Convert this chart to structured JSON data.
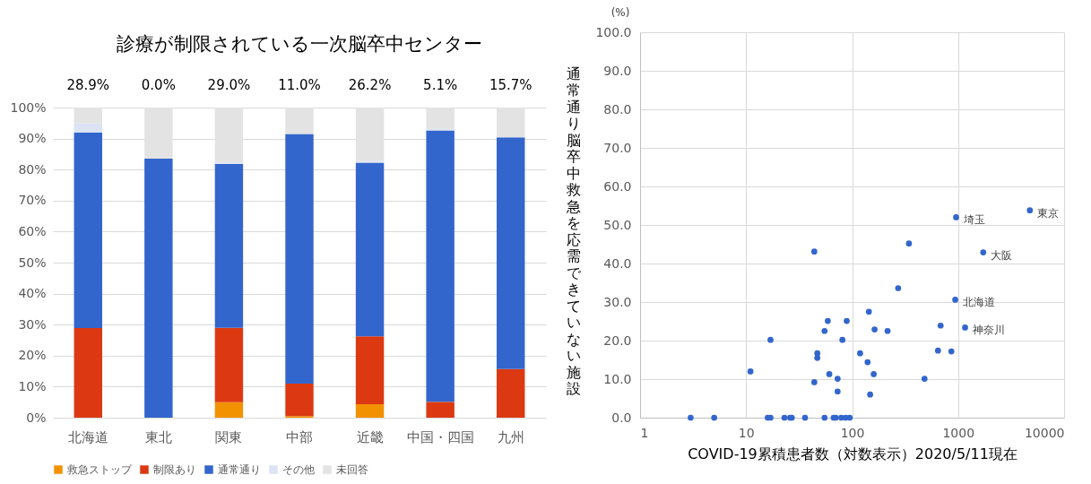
{
  "chart_data": [
    {
      "type": "bar",
      "title": "診療が制限されている一次脳卒中センター",
      "stacked": true,
      "legend": "bottom",
      "grid": "y",
      "categories": [
        "北海道",
        "東北",
        "関東",
        "中部",
        "近畿",
        "中国・四国",
        "九州"
      ],
      "series": [
        {
          "name": "救急ストップ",
          "color": "#f39200",
          "values": [
            0,
            0,
            5.0,
            0.5,
            4.3,
            0,
            0
          ]
        },
        {
          "name": "制限あり",
          "color": "#dc3912",
          "values": [
            28.9,
            0,
            24.0,
            10.5,
            21.9,
            5.1,
            15.7
          ]
        },
        {
          "name": "通常通り",
          "color": "#3366cc",
          "values": [
            63.1,
            83.5,
            52.8,
            80.5,
            56.0,
            87.5,
            74.7
          ]
        },
        {
          "name": "その他",
          "color": "#dbe3f5",
          "values": [
            2.9,
            0,
            0.5,
            0,
            0.6,
            0.5,
            0
          ]
        },
        {
          "name": "未回答",
          "color": "#e3e3e3",
          "values": [
            5.1,
            16.5,
            17.7,
            8.5,
            17.2,
            6.9,
            9.6
          ]
        }
      ],
      "ylim": [
        0,
        100
      ],
      "yticks": [
        {
          "value": 0,
          "label": "0%"
        },
        {
          "value": 10,
          "label": "10%"
        },
        {
          "value": 20,
          "label": "20%"
        },
        {
          "value": 30,
          "label": "30%"
        },
        {
          "value": 40,
          "label": "40%"
        },
        {
          "value": 50,
          "label": "50%"
        },
        {
          "value": 60,
          "label": "60%"
        },
        {
          "value": 70,
          "label": "70%"
        },
        {
          "value": 80,
          "label": "80%"
        },
        {
          "value": 90,
          "label": "90%"
        },
        {
          "value": 100,
          "label": "100%"
        }
      ],
      "annotations": [
        "28.9%",
        "0.0%",
        "29.0%",
        "11.0%",
        "26.2%",
        "5.1%",
        "15.7%"
      ]
    },
    {
      "type": "scatter",
      "log": "x",
      "grid": true,
      "marker": "circle",
      "color": "#3366cc",
      "xlabel": "COVID-19累積患者数（対数表示）2020/5/11現在",
      "ylabel": "通常通り脳卒中救急を応需できていない施設",
      "x": [
        3,
        5,
        11,
        17,
        16,
        17,
        23,
        26,
        27,
        36,
        55,
        67,
        70,
        79,
        87,
        95,
        44,
        59,
        55,
        89,
        81,
        47,
        47,
        61,
        44,
        73,
        73,
        119,
        140,
        160,
        148,
        144,
        163,
        216,
        272,
        344,
        482,
        646,
        684,
        864,
        940,
        958,
        1164,
        1727,
        4750
      ],
      "values": [
        0,
        0,
        12.0,
        20.2,
        0,
        0,
        0,
        0,
        0,
        0,
        0,
        0,
        0,
        0,
        0,
        0,
        43.1,
        25.1,
        22.5,
        25.1,
        20.2,
        16.7,
        15.5,
        11.3,
        9.2,
        10.1,
        6.8,
        16.7,
        14.4,
        11.3,
        6.0,
        27.5,
        22.9,
        22.5,
        33.6,
        45.2,
        10.1,
        17.4,
        23.9,
        17.2,
        30.6,
        52.0,
        23.4,
        42.9,
        53.8
      ],
      "xlim": [
        1,
        10000
      ],
      "xticks": [
        1,
        10,
        100,
        {
          "value": 1000,
          "label": "1000"
        },
        {
          "value": 10000,
          "label": "10000"
        }
      ],
      "ylim": [
        0,
        100
      ],
      "yticks": [
        {
          "value": 0,
          "label": "0.0"
        },
        {
          "value": 10,
          "label": "10.0"
        },
        {
          "value": 20,
          "label": "20.0"
        },
        {
          "value": 30,
          "label": "30.0"
        },
        {
          "value": 40,
          "label": "40.0"
        },
        {
          "value": 50,
          "label": "50.0"
        },
        {
          "value": 60,
          "label": "60.0"
        },
        {
          "value": 70,
          "label": "70.0"
        },
        {
          "value": 80,
          "label": "80.0"
        },
        {
          "value": 90,
          "label": "90.0"
        },
        {
          "value": 100,
          "label": "100.0"
        }
      ],
      "annotations": [
        "(%)",
        {
          "text": "東京",
          "x": 4750,
          "y": 53.8
        },
        {
          "text": "埼玉",
          "x": 958,
          "y": 52.0
        },
        {
          "text": "大阪",
          "x": 1727,
          "y": 42.9
        },
        {
          "text": "北海道",
          "x": 940,
          "y": 30.6
        },
        {
          "text": "神奈川",
          "x": 1164,
          "y": 23.4
        }
      ]
    }
  ]
}
